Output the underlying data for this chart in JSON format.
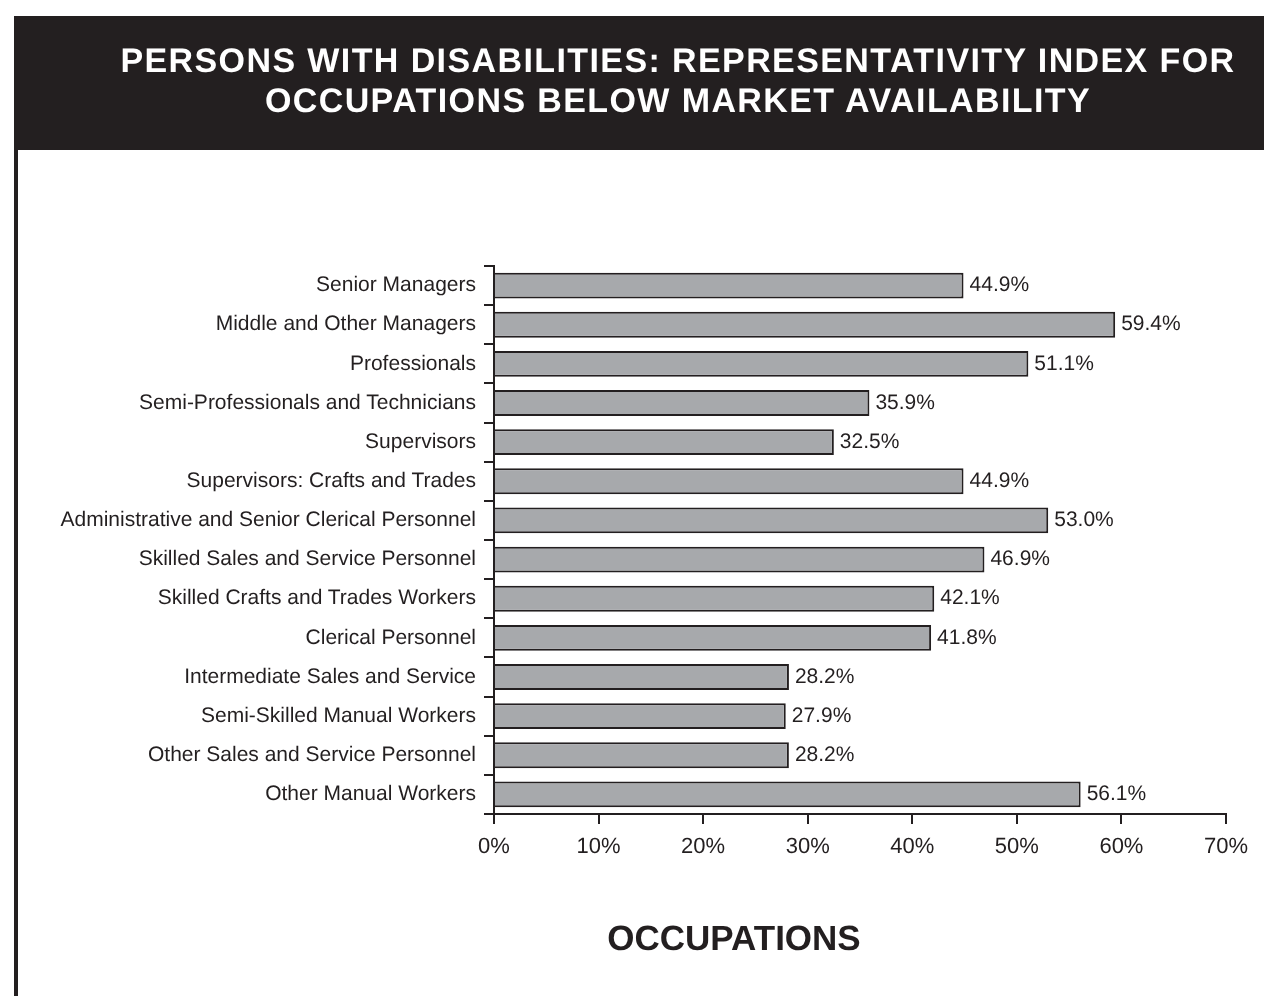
{
  "chart_data": {
    "type": "bar",
    "orientation": "horizontal",
    "title": "PERSONS WITH DISABILITIES: REPRESENTATIVITY INDEX FOR OCCUPATIONS BELOW MARKET AVAILABILITY",
    "xlabel": "OCCUPATIONS",
    "categories": [
      "Senior Managers",
      "Middle and Other Managers",
      "Professionals",
      "Semi-Professionals and Technicians",
      "Supervisors",
      "Supervisors: Crafts and Trades",
      "Administrative and Senior Clerical Personnel",
      "Skilled Sales and Service Personnel",
      "Skilled Crafts and Trades Workers",
      "Clerical Personnel",
      "Intermediate Sales and Service",
      "Semi-Skilled Manual Workers",
      "Other Sales and Service Personnel",
      "Other Manual Workers"
    ],
    "values": [
      44.9,
      59.4,
      51.1,
      35.9,
      32.5,
      44.9,
      53.0,
      46.9,
      42.1,
      41.8,
      28.2,
      27.9,
      28.2,
      56.1
    ],
    "value_labels": [
      "44.9%",
      "59.4%",
      "51.1%",
      "35.9%",
      "32.5%",
      "44.9%",
      "53.0%",
      "46.9%",
      "42.1%",
      "41.8%",
      "28.2%",
      "27.9%",
      "28.2%",
      "56.1%"
    ],
    "color": "#a7a9ac",
    "xlim": [
      0,
      70
    ],
    "xticks": [
      {
        "value": 0,
        "label": "0%"
      },
      {
        "value": 10,
        "label": "10%"
      },
      {
        "value": 20,
        "label": "20%"
      },
      {
        "value": 30,
        "label": "30%"
      },
      {
        "value": 40,
        "label": "40%"
      },
      {
        "value": 50,
        "label": "50%"
      },
      {
        "value": 60,
        "label": "60%"
      },
      {
        "value": 70,
        "label": "70%"
      }
    ],
    "grid": false
  }
}
